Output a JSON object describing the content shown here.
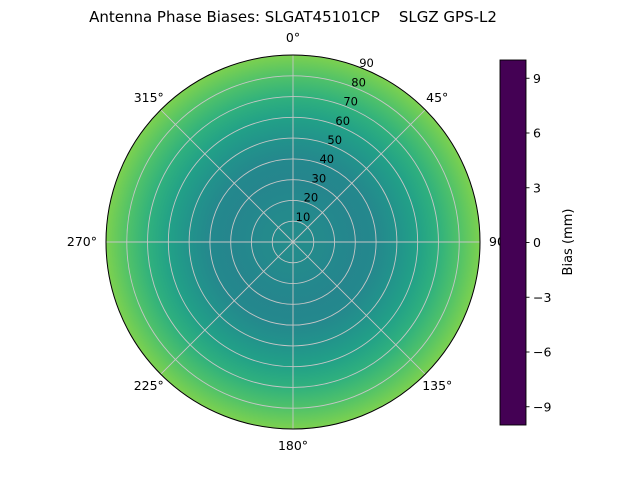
{
  "chart_data": {
    "type": "heatmap",
    "projection": "polar",
    "title": "Antenna Phase Biases: SLGAT45101CP    SLGZ GPS-L2",
    "colormap": "viridis",
    "grid": true,
    "radial_range": [
      0,
      90
    ],
    "angular_ticks": [
      {
        "angle_deg": 0,
        "label": "0°"
      },
      {
        "angle_deg": 45,
        "label": "45°"
      },
      {
        "angle_deg": 90,
        "label": "90"
      },
      {
        "angle_deg": 135,
        "label": "135°"
      },
      {
        "angle_deg": 180,
        "label": "180°"
      },
      {
        "angle_deg": 225,
        "label": "225°"
      },
      {
        "angle_deg": 270,
        "label": "270°"
      },
      {
        "angle_deg": 315,
        "label": "315°"
      }
    ],
    "radial_ticks": {
      "values": [
        10,
        20,
        30,
        40,
        50,
        60,
        70,
        80,
        90
      ],
      "labels": [
        "10",
        "20",
        "30",
        "40",
        "50",
        "60",
        "70",
        "80",
        "90"
      ],
      "label_azimuth_deg": 22.5
    },
    "radial_profile": {
      "description": "Bias (mm) versus radial coordinate (0 at zenith center to 90 at edge); pattern is approximately azimuthally symmetric, teal near center rising to green-yellow at the rim",
      "radius": [
        0,
        10,
        20,
        30,
        40,
        50,
        60,
        70,
        80,
        90
      ],
      "bias_mm": [
        -0.2,
        -0.4,
        -0.6,
        -0.8,
        -0.6,
        0.2,
        1.4,
        2.8,
        4.4,
        6.0
      ]
    },
    "colorbar": {
      "label": "Bias (mm)",
      "range": [
        -10,
        10
      ],
      "tick_values": [
        9,
        6,
        3,
        0,
        -3,
        -6,
        -9
      ],
      "tick_labels": [
        "9",
        "6",
        "3",
        "0",
        "−3",
        "−6",
        "−9"
      ],
      "viridis_stops": [
        "#440154",
        "#482878",
        "#3e4989",
        "#31688e",
        "#26828e",
        "#1f9e89",
        "#35b779",
        "#6ece58",
        "#b5de2b",
        "#fde725"
      ]
    }
  }
}
